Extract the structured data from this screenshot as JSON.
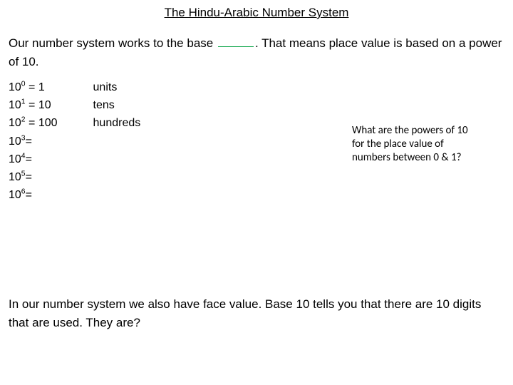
{
  "title": "The Hindu-Arabic Number System",
  "intro_part1": "Our number system works to the base ",
  "intro_part2": ". That means place value is based on a power of 10.",
  "powers": [
    {
      "base": "10",
      "exp": "0",
      "result": "1",
      "label": "units"
    },
    {
      "base": "10",
      "exp": "1",
      "result": "10",
      "label": "tens"
    },
    {
      "base": "10",
      "exp": "2",
      "result": "100",
      "label": "hundreds"
    },
    {
      "base": "10",
      "exp": "3",
      "result": "",
      "label": ""
    },
    {
      "base": "10",
      "exp": "4",
      "result": "",
      "label": ""
    },
    {
      "base": "10",
      "exp": "5",
      "result": "",
      "label": ""
    },
    {
      "base": "10",
      "exp": "6",
      "result": "",
      "label": ""
    }
  ],
  "question": "What are the powers of 10 for the place value of numbers between 0 & 1?",
  "closing": "In our number system we also have face value. Base 10 tells you that there are 10 digits that are used. They are?",
  "colors": {
    "background": "#ffffff",
    "text": "#000000",
    "blank_underline": "#00a040"
  },
  "fonts": {
    "main": "Comic Sans MS",
    "question": "Calibri"
  }
}
